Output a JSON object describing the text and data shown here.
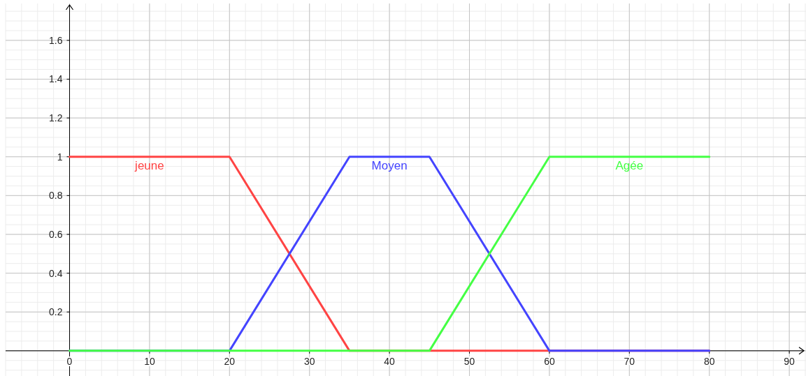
{
  "chart_data": {
    "type": "line",
    "x": [
      0,
      20,
      35,
      45,
      60,
      80
    ],
    "series": [
      {
        "name": "jeune",
        "color": "#ff4444",
        "values": [
          1,
          1,
          0,
          0,
          0,
          0
        ]
      },
      {
        "name": "Moyen",
        "color": "#4444ff",
        "values": [
          0,
          0,
          1,
          1,
          0,
          0
        ]
      },
      {
        "name": "Agée",
        "color": "#44ff44",
        "values": [
          0,
          0,
          0,
          0,
          1,
          1
        ]
      }
    ],
    "xlim": [
      -8,
      92
    ],
    "ylim": [
      -0.13,
      1.79
    ],
    "xticks": [
      0,
      10,
      20,
      30,
      40,
      50,
      60,
      70,
      80,
      90
    ],
    "yticks": [
      0.2,
      0.4,
      0.6,
      0.8,
      1,
      1.2,
      1.4,
      1.6
    ],
    "grid": true,
    "legend": false,
    "marker": "none",
    "line_style": "solid"
  }
}
